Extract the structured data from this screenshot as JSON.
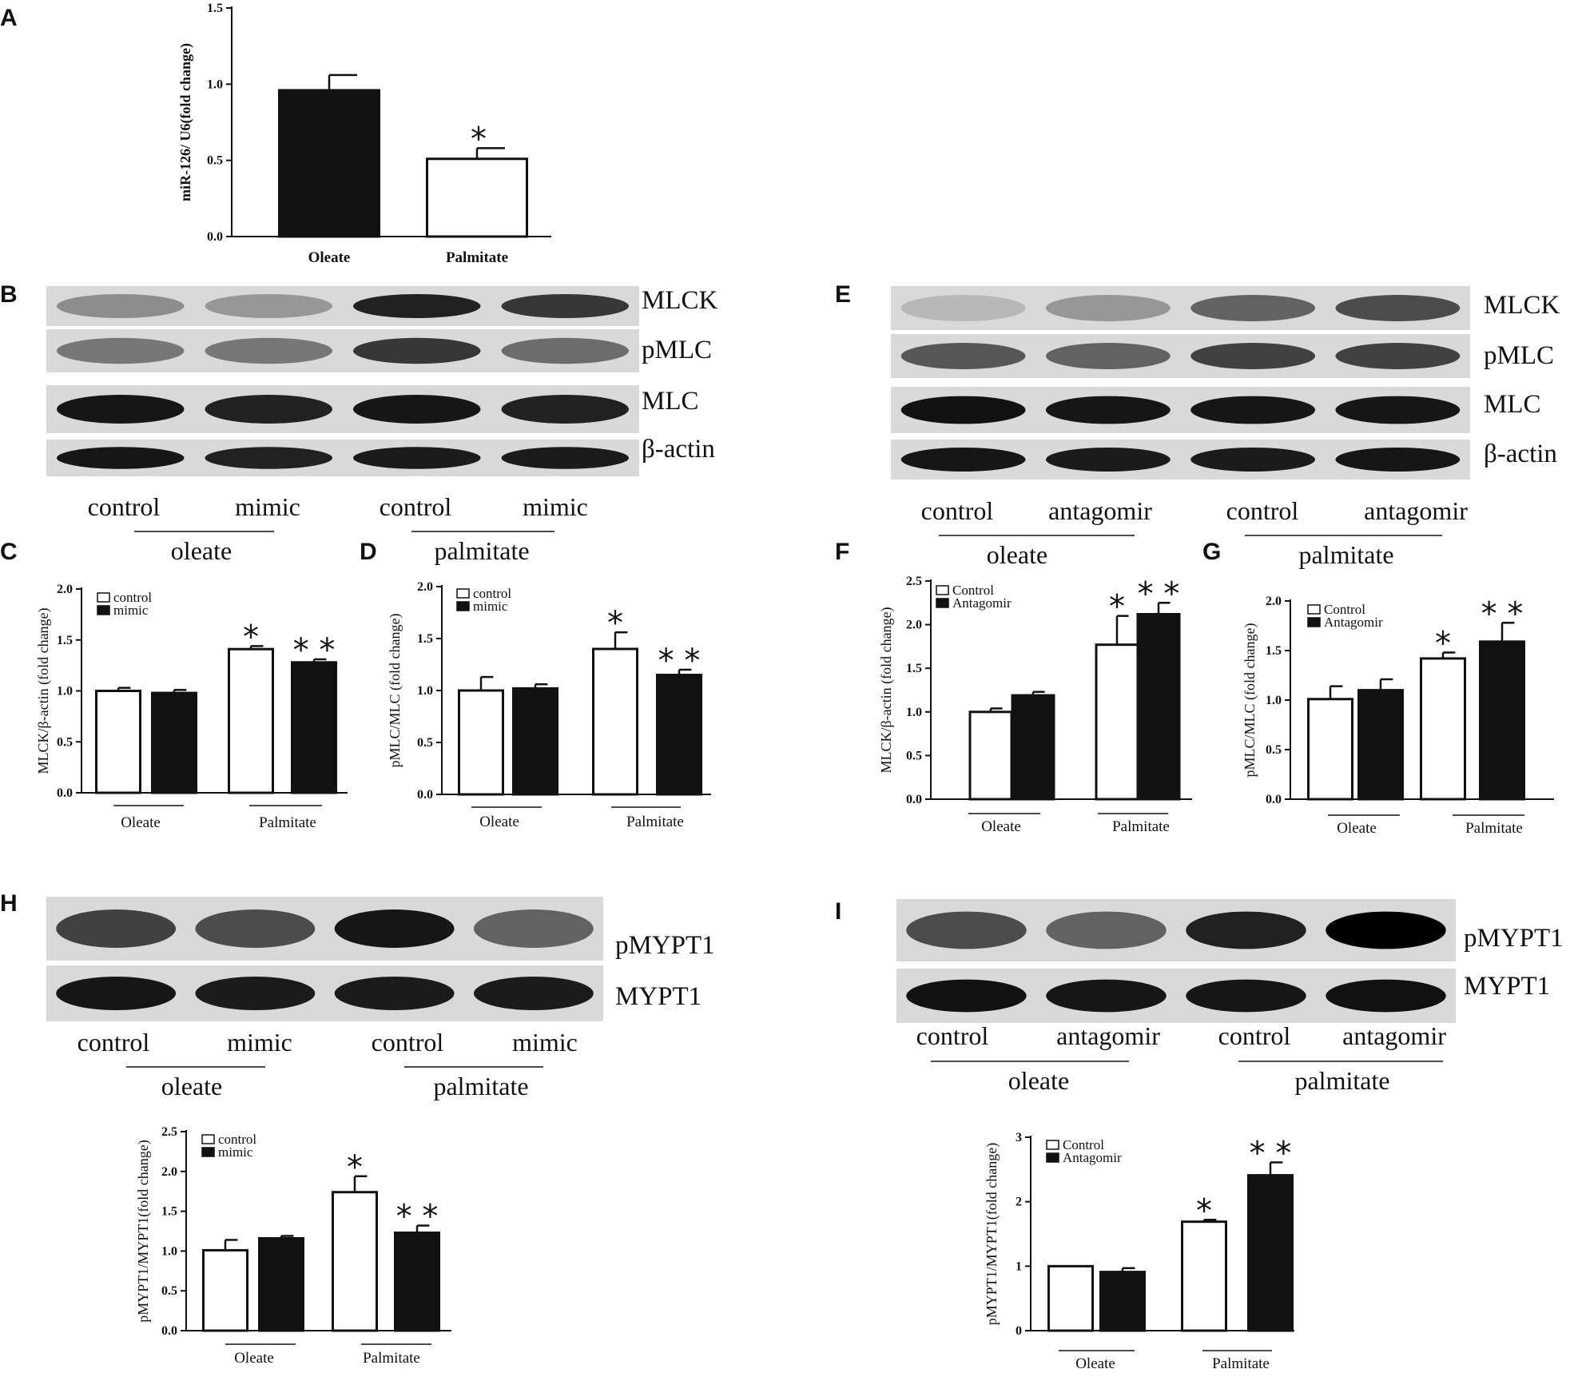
{
  "colors": {
    "ink": "#111111",
    "fill_dark": "#111111",
    "fill_light": "#ffffff",
    "blot_bg": "#d9d9d9"
  },
  "panel_letters": [
    "A",
    "B",
    "C",
    "D",
    "E",
    "F",
    "G",
    "H",
    "I"
  ],
  "blots": {
    "B": {
      "rows": [
        "MLCK",
        "pMLC",
        "MLC",
        "β-actin"
      ],
      "lanes": [
        "control",
        "mimic",
        "control",
        "mimic"
      ],
      "groups": [
        "oleate",
        "palmitate"
      ],
      "intensity": [
        [
          0.35,
          0.3,
          0.85,
          0.75
        ],
        [
          0.45,
          0.45,
          0.75,
          0.5
        ],
        [
          0.9,
          0.85,
          0.9,
          0.85
        ],
        [
          0.9,
          0.85,
          0.88,
          0.88
        ]
      ]
    },
    "E": {
      "rows": [
        "MLCK",
        "pMLC",
        "MLC",
        "β-actin"
      ],
      "lanes": [
        "control",
        "antagomir",
        "control",
        "antagomir"
      ],
      "groups": [
        "oleate",
        "palmitate"
      ],
      "intensity": [
        [
          0.15,
          0.3,
          0.55,
          0.65
        ],
        [
          0.6,
          0.55,
          0.7,
          0.7
        ],
        [
          0.92,
          0.9,
          0.9,
          0.9
        ],
        [
          0.9,
          0.88,
          0.88,
          0.9
        ]
      ]
    },
    "H": {
      "rows": [
        "pMYPT1",
        "MYPT1"
      ],
      "lanes": [
        "control",
        "mimic",
        "control",
        "mimic"
      ],
      "groups": [
        "oleate",
        "palmitate"
      ],
      "intensity": [
        [
          0.7,
          0.65,
          0.9,
          0.55
        ],
        [
          0.9,
          0.88,
          0.88,
          0.88
        ]
      ]
    },
    "I": {
      "rows": [
        "pMYPT1",
        "MYPT1"
      ],
      "lanes": [
        "control",
        "antagomir",
        "control",
        "antagomir"
      ],
      "groups": [
        "oleate",
        "palmitate"
      ],
      "intensity": [
        [
          0.65,
          0.55,
          0.85,
          1.0
        ],
        [
          0.92,
          0.9,
          0.9,
          0.92
        ]
      ]
    }
  },
  "chart_data": [
    {
      "panel": "A",
      "type": "bar",
      "categories": [
        "Oleate",
        "Palmitate"
      ],
      "series": [
        {
          "values": [
            0.96,
            0.51
          ],
          "errors": [
            0.1,
            0.07
          ],
          "fill": "dark_light"
        }
      ],
      "ylabel": "miR-126/ U6(fold change)",
      "ylim": [
        0,
        1.5
      ],
      "yticks": [
        "0.0",
        "0.5",
        "1.0",
        "1.5"
      ],
      "significance": [
        "",
        "*"
      ]
    },
    {
      "panel": "C",
      "type": "bar",
      "categories": [
        "Oleate",
        "Palmitate"
      ],
      "series": [
        {
          "name": "control",
          "values": [
            1.0,
            1.41
          ],
          "errors": [
            0.03,
            0.03
          ]
        },
        {
          "name": "mimic",
          "values": [
            0.98,
            1.28
          ],
          "errors": [
            0.03,
            0.03
          ]
        }
      ],
      "ylabel": "MLCK/β-actin (fold change)",
      "ylim": [
        0,
        2.0
      ],
      "yticks": [
        "0.0",
        "0.5",
        "1.0",
        "1.5",
        "2.0"
      ],
      "significance": [
        [
          "",
          ""
        ],
        [
          "*",
          "* *"
        ]
      ]
    },
    {
      "panel": "D",
      "type": "bar",
      "categories": [
        "Oleate",
        "Palmitate"
      ],
      "series": [
        {
          "name": "control",
          "values": [
            1.0,
            1.4
          ],
          "errors": [
            0.13,
            0.16
          ]
        },
        {
          "name": "mimic",
          "values": [
            1.02,
            1.15
          ],
          "errors": [
            0.04,
            0.05
          ]
        }
      ],
      "ylabel": "pMLC/MLC (fold change)",
      "ylim": [
        0,
        2.0
      ],
      "yticks": [
        "0.0",
        "0.5",
        "1.0",
        "1.5",
        "2.0"
      ],
      "significance": [
        [
          "",
          ""
        ],
        [
          "*",
          "* *"
        ]
      ]
    },
    {
      "panel": "F",
      "type": "bar",
      "categories": [
        "Oleate",
        "Palmitate"
      ],
      "series": [
        {
          "name": "Control",
          "values": [
            1.0,
            1.77
          ],
          "errors": [
            0.04,
            0.33
          ]
        },
        {
          "name": "Antagomir",
          "values": [
            1.19,
            2.12
          ],
          "errors": [
            0.04,
            0.13
          ]
        }
      ],
      "ylabel": "MLCK/β-actin (fold change)",
      "ylim": [
        0,
        2.5
      ],
      "yticks": [
        "0.0",
        "0.5",
        "1.0",
        "1.5",
        "2.0",
        "2.5"
      ],
      "significance": [
        [
          "",
          ""
        ],
        [
          "*",
          "* *"
        ]
      ]
    },
    {
      "panel": "G",
      "type": "bar",
      "categories": [
        "Oleate",
        "Palmitate"
      ],
      "series": [
        {
          "name": "Control",
          "values": [
            1.01,
            1.42
          ],
          "errors": [
            0.13,
            0.06
          ]
        },
        {
          "name": "Antagomir",
          "values": [
            1.1,
            1.59
          ],
          "errors": [
            0.11,
            0.19
          ]
        }
      ],
      "ylabel": "pMLC/MLC (fold change)",
      "ylim": [
        0,
        2.0
      ],
      "yticks": [
        "0.0",
        "0.5",
        "1.0",
        "1.5",
        "2.0"
      ],
      "significance": [
        [
          "",
          ""
        ],
        [
          "*",
          "* *"
        ]
      ]
    },
    {
      "panel": "H",
      "type": "bar",
      "categories": [
        "Oleate",
        "Palmitate"
      ],
      "series": [
        {
          "name": "control",
          "values": [
            1.01,
            1.74
          ],
          "errors": [
            0.13,
            0.2
          ]
        },
        {
          "name": "mimic",
          "values": [
            1.16,
            1.23
          ],
          "errors": [
            0.03,
            0.09
          ]
        }
      ],
      "ylabel": "pMYPT1/MYPT1(fold change)",
      "ylim": [
        0,
        2.5
      ],
      "yticks": [
        "0.0",
        "0.5",
        "1.0",
        "1.5",
        "2.0",
        "2.5"
      ],
      "significance": [
        [
          "",
          ""
        ],
        [
          "*",
          "* *"
        ]
      ]
    },
    {
      "panel": "I",
      "type": "bar",
      "categories": [
        "Oleate",
        "Palmitate"
      ],
      "series": [
        {
          "name": "Control",
          "values": [
            1.0,
            1.69
          ],
          "errors": [
            0.0,
            0.03
          ]
        },
        {
          "name": "Antagomir",
          "values": [
            0.91,
            2.41
          ],
          "errors": [
            0.06,
            0.2
          ]
        }
      ],
      "ylabel": "pMYPT1/MYPT1(fold change)",
      "ylim": [
        0,
        3
      ],
      "yticks": [
        "0",
        "1",
        "2",
        "3"
      ],
      "significance": [
        [
          "",
          ""
        ],
        [
          "*",
          "* *"
        ]
      ]
    }
  ]
}
